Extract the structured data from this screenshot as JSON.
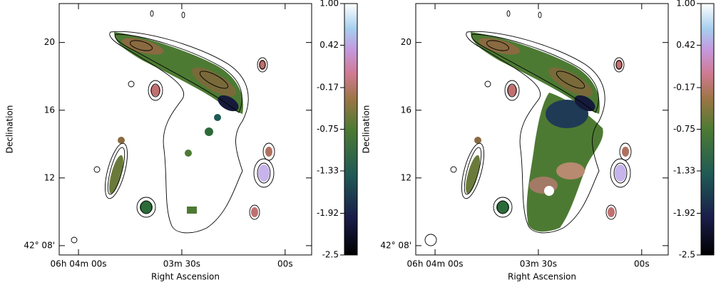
{
  "chart_data": [
    {
      "type": "image",
      "xlabel": "Right Ascension",
      "ylabel": "Declination",
      "xlim": [
        245.6,
        172.3
      ],
      "xticks": [
        {
          "value": 240,
          "label": "06h 04m 00s"
        },
        {
          "value": 210,
          "label": "03m 30s"
        },
        {
          "value": 180,
          "label": "00s"
        }
      ],
      "ylim": [
        7.45,
        22.3
      ],
      "yticks": [
        {
          "value": 8,
          "label": "42° 08'"
        },
        12,
        16,
        20
      ],
      "colorbar_lim": [
        -2.5,
        1.0
      ],
      "colorbar_ticks": [
        -2.5,
        -1.92,
        -1.33,
        -0.75,
        -0.17,
        0.42,
        {
          "value": 1.0,
          "label": "1.00"
        }
      ]
    },
    {
      "type": "image",
      "xlabel": "Right Ascension",
      "ylabel": "Declination",
      "xlim": [
        245.6,
        172.3
      ],
      "xticks": [
        {
          "value": 240,
          "label": "06h 04m 00s"
        },
        {
          "value": 210,
          "label": "03m 30s"
        },
        {
          "value": 180,
          "label": "00s"
        }
      ],
      "ylim": [
        7.45,
        22.3
      ],
      "yticks": [
        {
          "value": 8,
          "label": "42° 08'"
        },
        12,
        16,
        20
      ],
      "colorbar_lim": [
        -2.5,
        1.0
      ],
      "colorbar_ticks": [
        -2.5,
        -1.92,
        -1.33,
        -0.75,
        -0.17,
        0.42,
        {
          "value": 1.0,
          "label": "1.00"
        }
      ]
    }
  ]
}
